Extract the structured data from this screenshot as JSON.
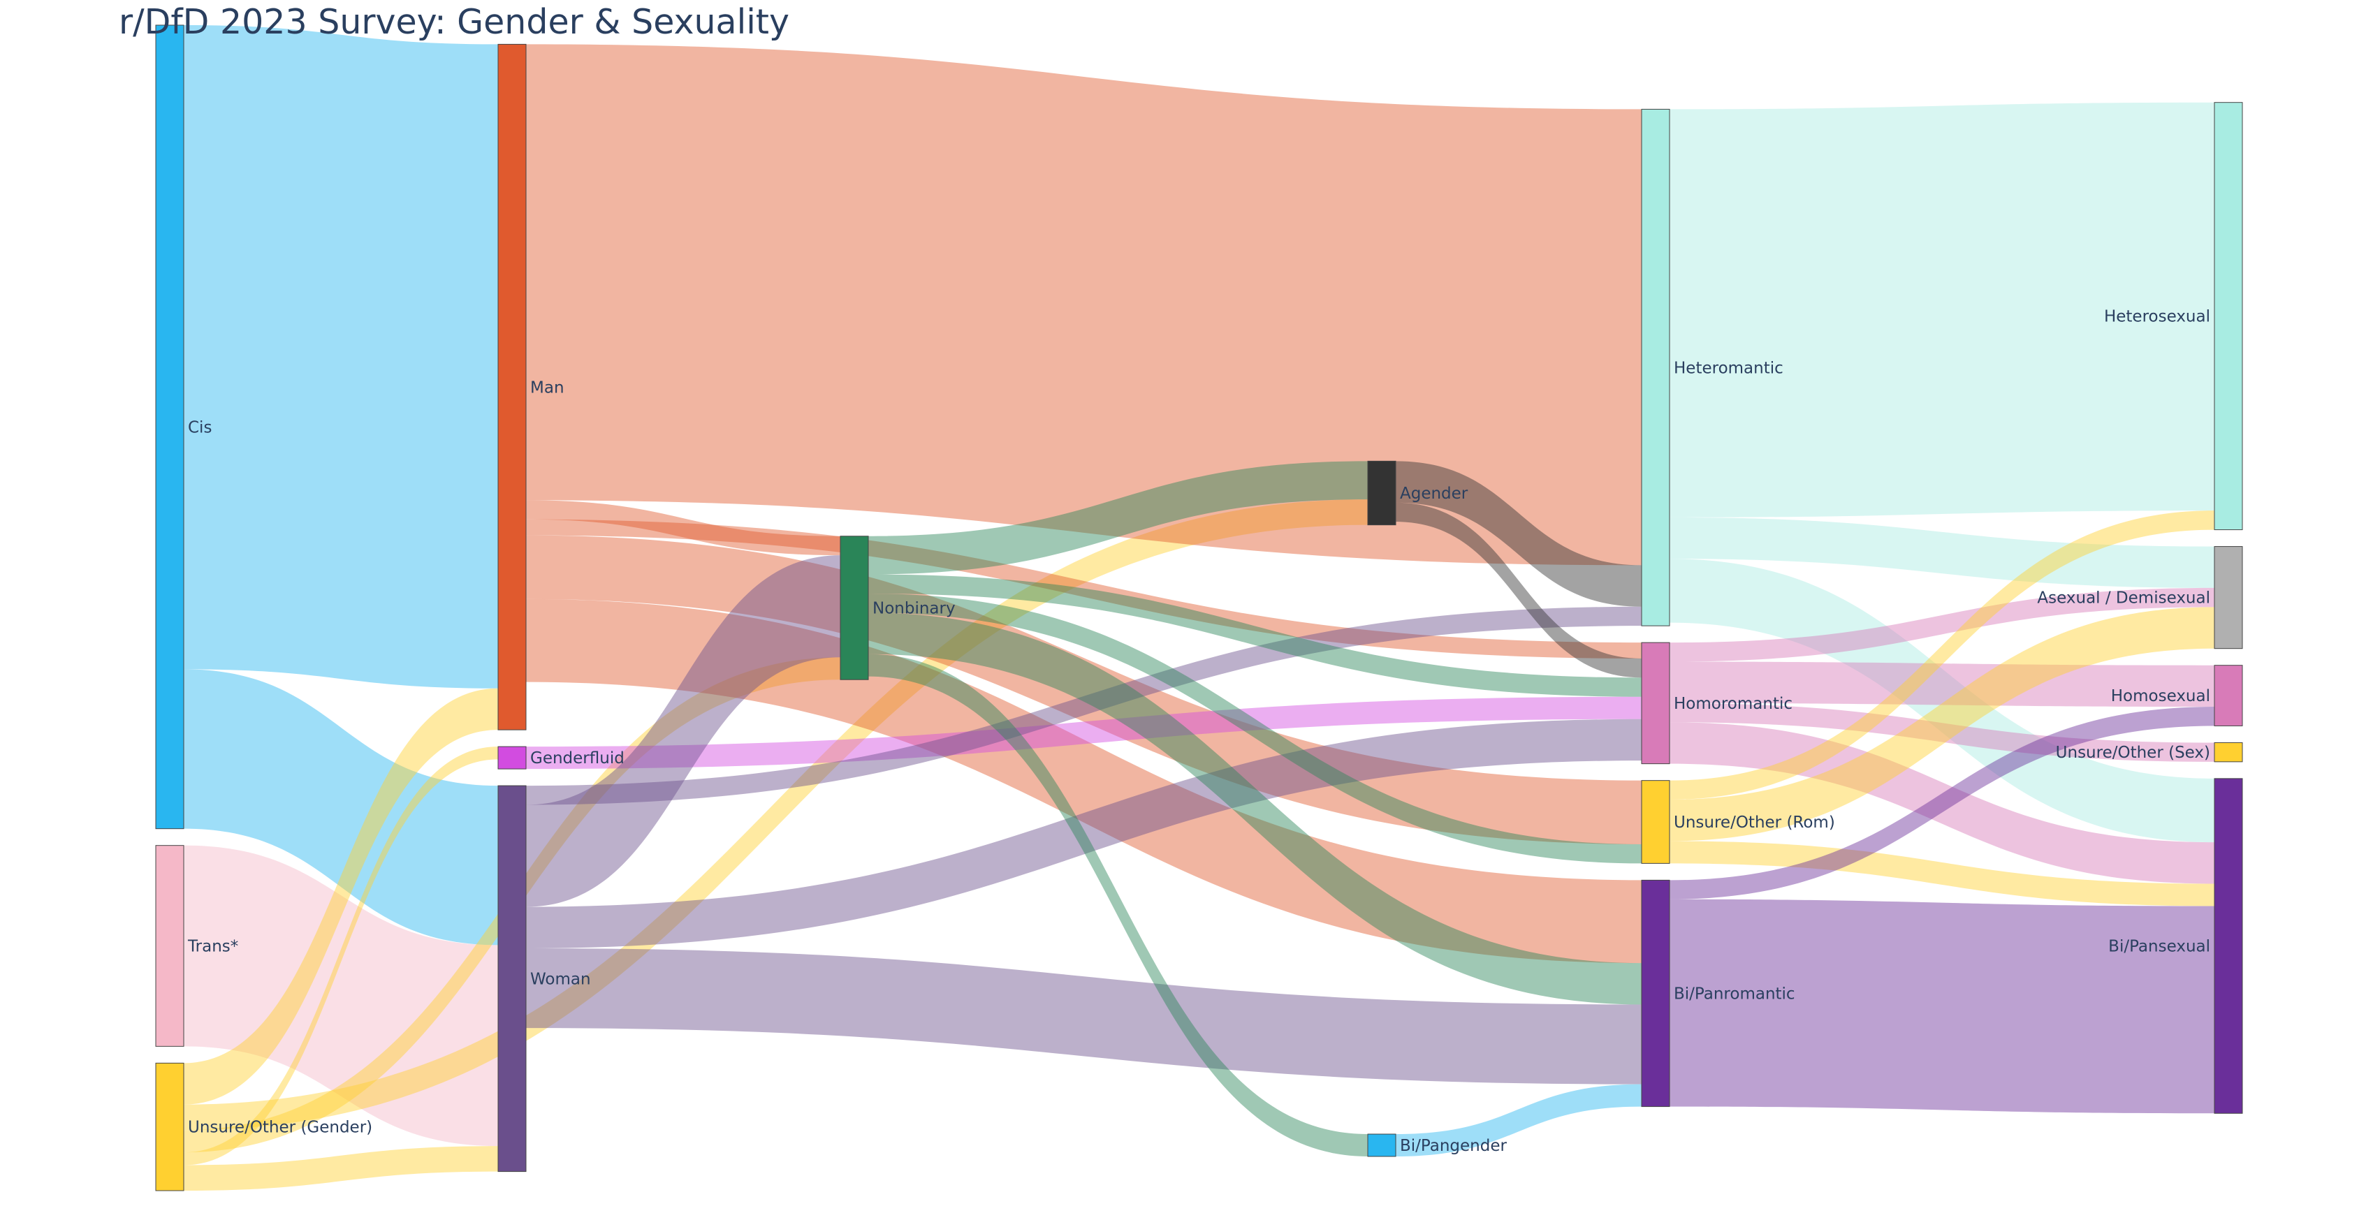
{
  "chart_data": {
    "type": "sankey",
    "title": "r/DfD 2023 Survey: Gender & Sexuality",
    "nodes": [
      {
        "id": "cis",
        "label": "Cis",
        "color": "#29b6f0",
        "column": 0
      },
      {
        "id": "trans",
        "label": "Trans*",
        "color": "#f5b8c8",
        "column": 0
      },
      {
        "id": "unsure_gender",
        "label": "Unsure/Other (Gender)",
        "color": "#ffd030",
        "column": 0
      },
      {
        "id": "man",
        "label": "Man",
        "color": "#e05a2e",
        "column": 1
      },
      {
        "id": "genderfluid",
        "label": "Genderfluid",
        "color": "#d24ce0",
        "column": 1
      },
      {
        "id": "woman",
        "label": "Woman",
        "color": "#6a4f8c",
        "column": 1
      },
      {
        "id": "nonbinary",
        "label": "Nonbinary",
        "color": "#2a8558",
        "column": 2
      },
      {
        "id": "agender",
        "label": "Agender",
        "color": "#333333",
        "column": 3
      },
      {
        "id": "bipangender",
        "label": "Bi/Pangender",
        "color": "#29b6f0",
        "column": 3
      },
      {
        "id": "heteromantic",
        "label": "Heteromantic",
        "color": "#a8ece2",
        "column": 4
      },
      {
        "id": "homoromantic",
        "label": "Homoromantic",
        "color": "#d87bb8",
        "column": 4
      },
      {
        "id": "unsure_rom",
        "label": "Unsure/Other (Rom)",
        "color": "#ffd030",
        "column": 4
      },
      {
        "id": "bipanromantic",
        "label": "Bi/Panromantic",
        "color": "#6a2f9a",
        "column": 4
      },
      {
        "id": "heterosexual",
        "label": "Heterosexual",
        "color": "#a8ece2",
        "column": 5
      },
      {
        "id": "asexual",
        "label": "Asexual / Demisexual",
        "color": "#b0b0b0",
        "column": 5
      },
      {
        "id": "homosexual",
        "label": "Homosexual",
        "color": "#d87bb8",
        "column": 5
      },
      {
        "id": "unsure_sex",
        "label": "Unsure/Other (Sex)",
        "color": "#ffd030",
        "column": 5
      },
      {
        "id": "bipansexual",
        "label": "Bi/Pansexual",
        "color": "#6a2f9a",
        "column": 5
      }
    ],
    "links": [
      {
        "source": "cis",
        "target": "man",
        "value": 202,
        "color": "#29b6f0"
      },
      {
        "source": "cis",
        "target": "woman",
        "value": 50,
        "color": "#29b6f0"
      },
      {
        "source": "trans",
        "target": "woman",
        "value": 63,
        "color": "#f5b8c8"
      },
      {
        "source": "unsure_gender",
        "target": "man",
        "value": 13,
        "color": "#ffd030"
      },
      {
        "source": "unsure_gender",
        "target": "genderfluid",
        "value": 4,
        "color": "#ffd030"
      },
      {
        "source": "unsure_gender",
        "target": "agender",
        "value": 8,
        "color": "#ffd030"
      },
      {
        "source": "unsure_gender",
        "target": "woman",
        "value": 8,
        "color": "#ffd030"
      },
      {
        "source": "unsure_gender",
        "target": "nonbinary",
        "value": 7,
        "color": "#ffd030"
      },
      {
        "source": "man",
        "target": "heteromantic",
        "value": 143,
        "color": "#e05a2e"
      },
      {
        "source": "man",
        "target": "homoromantic",
        "value": 5,
        "color": "#e05a2e"
      },
      {
        "source": "man",
        "target": "unsure_rom",
        "value": 20,
        "color": "#e05a2e"
      },
      {
        "source": "man",
        "target": "bipanromantic",
        "value": 26,
        "color": "#e05a2e"
      },
      {
        "source": "man",
        "target": "nonbinary",
        "value": 6,
        "color": "#e05a2e"
      },
      {
        "source": "genderfluid",
        "target": "homoromantic",
        "value": 7,
        "color": "#d24ce0"
      },
      {
        "source": "woman",
        "target": "heteromantic",
        "value": 6,
        "color": "#6a4f8c"
      },
      {
        "source": "woman",
        "target": "homoromantic",
        "value": 13,
        "color": "#6a4f8c"
      },
      {
        "source": "woman",
        "target": "bipanromantic",
        "value": 25,
        "color": "#6a4f8c"
      },
      {
        "source": "woman",
        "target": "nonbinary",
        "value": 32,
        "color": "#6a4f8c"
      },
      {
        "source": "nonbinary",
        "target": "agender",
        "value": 12,
        "color": "#2a8558"
      },
      {
        "source": "nonbinary",
        "target": "homoromantic",
        "value": 6,
        "color": "#2a8558"
      },
      {
        "source": "nonbinary",
        "target": "unsure_rom",
        "value": 6,
        "color": "#2a8558"
      },
      {
        "source": "nonbinary",
        "target": "bipanromantic",
        "value": 13,
        "color": "#2a8558"
      },
      {
        "source": "nonbinary",
        "target": "bipangender",
        "value": 7,
        "color": "#2a8558"
      },
      {
        "source": "agender",
        "target": "heteromantic",
        "value": 13,
        "color": "#333333"
      },
      {
        "source": "agender",
        "target": "homoromantic",
        "value": 6,
        "color": "#333333"
      },
      {
        "source": "bipangender",
        "target": "bipanromantic",
        "value": 7,
        "color": "#29b6f0"
      },
      {
        "source": "heteromantic",
        "target": "heterosexual",
        "value": 128,
        "color": "#a8ece2"
      },
      {
        "source": "heteromantic",
        "target": "asexual",
        "value": 13,
        "color": "#a8ece2"
      },
      {
        "source": "heteromantic",
        "target": "bipansexual",
        "value": 20,
        "color": "#a8ece2"
      },
      {
        "source": "homoromantic",
        "target": "asexual",
        "value": 6,
        "color": "#d87bb8"
      },
      {
        "source": "homoromantic",
        "target": "homosexual",
        "value": 13,
        "color": "#d87bb8"
      },
      {
        "source": "homoromantic",
        "target": "bipansexual",
        "value": 13,
        "color": "#d87bb8"
      },
      {
        "source": "homoromantic",
        "target": "unsure_sex",
        "value": 6,
        "color": "#d87bb8"
      },
      {
        "source": "unsure_rom",
        "target": "heterosexual",
        "value": 6,
        "color": "#ffd030"
      },
      {
        "source": "unsure_rom",
        "target": "asexual",
        "value": 13,
        "color": "#ffd030"
      },
      {
        "source": "unsure_rom",
        "target": "bipansexual",
        "value": 7,
        "color": "#ffd030"
      },
      {
        "source": "bipanromantic",
        "target": "homosexual",
        "value": 6,
        "color": "#6a2f9a"
      },
      {
        "source": "bipanromantic",
        "target": "bipansexual",
        "value": 65,
        "color": "#6a2f9a"
      }
    ]
  }
}
